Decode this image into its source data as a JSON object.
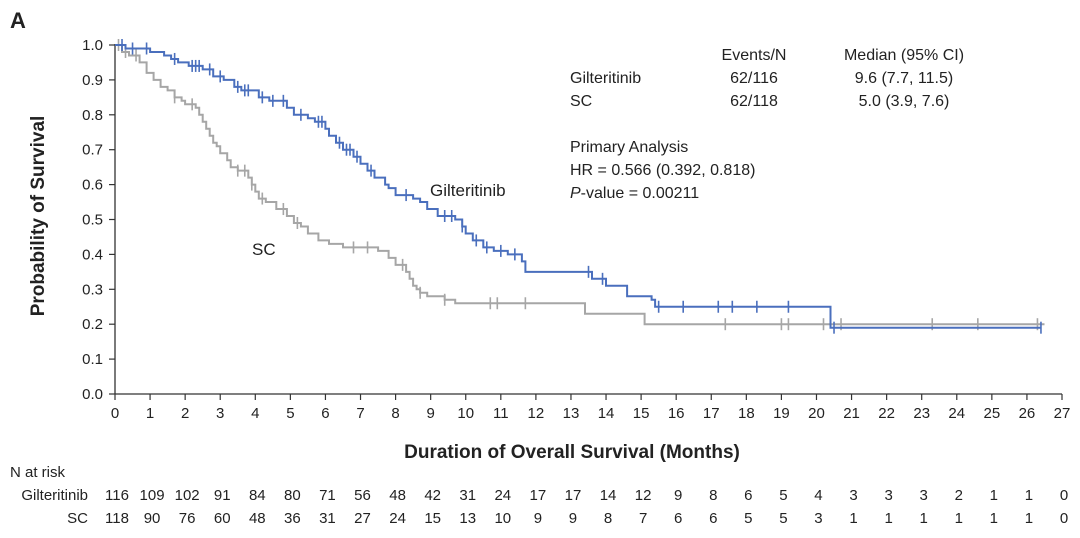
{
  "panel_label": "A",
  "colors": {
    "gilteritinib": "#4a6fbd",
    "sc": "#a6a6a6",
    "axis": "#333333"
  },
  "legend": {
    "header_events": "Events/N",
    "header_median": "Median (95% CI)",
    "rows": [
      {
        "name": "Gilteritinib",
        "events": "62/116",
        "median": "9.6 (7.7, 11.5)"
      },
      {
        "name": "SC",
        "events": "62/118",
        "median": "5.0 (3.9, 7.6)"
      }
    ],
    "analysis_title": "Primary Analysis",
    "hr": "HR = 0.566 (0.392, 0.818)",
    "p_label": "P",
    "p_rest": "-value = 0.00211"
  },
  "risk_table": {
    "title": "N at risk",
    "rows": [
      {
        "name": "Gilteritinib",
        "values": [
          "116",
          "109",
          "102",
          "91",
          "84",
          "80",
          "71",
          "56",
          "48",
          "42",
          "31",
          "24",
          "17",
          "17",
          "14",
          "12",
          "9",
          "8",
          "6",
          "5",
          "4",
          "3",
          "3",
          "3",
          "2",
          "1",
          "1",
          "0"
        ]
      },
      {
        "name": "SC",
        "values": [
          "118",
          "90",
          "76",
          "60",
          "48",
          "36",
          "31",
          "27",
          "24",
          "15",
          "13",
          "10",
          "9",
          "9",
          "8",
          "7",
          "6",
          "6",
          "5",
          "5",
          "3",
          "1",
          "1",
          "1",
          "1",
          "1",
          "1",
          "0"
        ]
      }
    ]
  },
  "chart_data": {
    "type": "line",
    "title": "",
    "xlabel": "Duration of Overall Survival (Months)",
    "ylabel": "Probability of Survival",
    "xlim": [
      0,
      27
    ],
    "ylim": [
      0,
      1.0
    ],
    "xticks": [
      0,
      1,
      2,
      3,
      4,
      5,
      6,
      7,
      8,
      9,
      10,
      11,
      12,
      13,
      14,
      15,
      16,
      17,
      18,
      19,
      20,
      21,
      22,
      23,
      24,
      25,
      26,
      27
    ],
    "yticks": [
      0.0,
      0.1,
      0.2,
      0.3,
      0.4,
      0.5,
      0.6,
      0.7,
      0.8,
      0.9,
      1.0
    ],
    "series": [
      {
        "name": "Gilteritinib",
        "label_text": "Gilteritinib",
        "step_points": [
          [
            0,
            1.0
          ],
          [
            0.3,
            0.99
          ],
          [
            1.0,
            0.98
          ],
          [
            1.4,
            0.97
          ],
          [
            1.6,
            0.96
          ],
          [
            1.8,
            0.95
          ],
          [
            2.1,
            0.94
          ],
          [
            2.5,
            0.93
          ],
          [
            2.8,
            0.91
          ],
          [
            3.1,
            0.9
          ],
          [
            3.4,
            0.88
          ],
          [
            3.6,
            0.87
          ],
          [
            4.1,
            0.85
          ],
          [
            4.4,
            0.84
          ],
          [
            4.9,
            0.82
          ],
          [
            5.1,
            0.8
          ],
          [
            5.5,
            0.79
          ],
          [
            5.7,
            0.78
          ],
          [
            6.0,
            0.76
          ],
          [
            6.1,
            0.74
          ],
          [
            6.3,
            0.72
          ],
          [
            6.5,
            0.7
          ],
          [
            6.8,
            0.68
          ],
          [
            7.0,
            0.66
          ],
          [
            7.2,
            0.64
          ],
          [
            7.4,
            0.62
          ],
          [
            7.7,
            0.6
          ],
          [
            7.8,
            0.59
          ],
          [
            8.0,
            0.57
          ],
          [
            8.5,
            0.56
          ],
          [
            8.7,
            0.55
          ],
          [
            8.9,
            0.53
          ],
          [
            9.2,
            0.51
          ],
          [
            9.7,
            0.5
          ],
          [
            9.9,
            0.48
          ],
          [
            10.0,
            0.46
          ],
          [
            10.2,
            0.44
          ],
          [
            10.5,
            0.42
          ],
          [
            10.8,
            0.41
          ],
          [
            11.2,
            0.4
          ],
          [
            11.6,
            0.38
          ],
          [
            11.7,
            0.35
          ],
          [
            13.6,
            0.33
          ],
          [
            14.0,
            0.31
          ],
          [
            14.6,
            0.28
          ],
          [
            15.3,
            0.27
          ],
          [
            15.4,
            0.25
          ],
          [
            20.4,
            0.19
          ],
          [
            26.4,
            0.19
          ]
        ],
        "censor_times": [
          0.2,
          0.5,
          0.9,
          1.7,
          2.2,
          2.3,
          2.4,
          2.7,
          3.0,
          3.5,
          3.7,
          3.8,
          4.2,
          4.5,
          4.8,
          5.3,
          5.8,
          5.9,
          6.4,
          6.6,
          6.7,
          6.9,
          7.3,
          8.3,
          9.4,
          9.6,
          9.9,
          10.3,
          10.6,
          11.0,
          11.4,
          13.5,
          13.9,
          15.5,
          16.2,
          17.2,
          17.6,
          18.3,
          19.2,
          20.5,
          26.4
        ]
      },
      {
        "name": "SC",
        "label_text": "SC",
        "step_points": [
          [
            0,
            1.0
          ],
          [
            0.2,
            0.98
          ],
          [
            0.4,
            0.97
          ],
          [
            0.7,
            0.95
          ],
          [
            0.9,
            0.92
          ],
          [
            1.1,
            0.9
          ],
          [
            1.3,
            0.88
          ],
          [
            1.5,
            0.87
          ],
          [
            1.7,
            0.85
          ],
          [
            1.9,
            0.84
          ],
          [
            2.0,
            0.83
          ],
          [
            2.3,
            0.82
          ],
          [
            2.4,
            0.8
          ],
          [
            2.5,
            0.78
          ],
          [
            2.6,
            0.76
          ],
          [
            2.7,
            0.74
          ],
          [
            2.8,
            0.72
          ],
          [
            2.9,
            0.71
          ],
          [
            3.0,
            0.69
          ],
          [
            3.2,
            0.67
          ],
          [
            3.3,
            0.65
          ],
          [
            3.5,
            0.64
          ],
          [
            3.8,
            0.62
          ],
          [
            3.9,
            0.6
          ],
          [
            4.0,
            0.58
          ],
          [
            4.1,
            0.56
          ],
          [
            4.3,
            0.55
          ],
          [
            4.6,
            0.53
          ],
          [
            4.9,
            0.51
          ],
          [
            5.1,
            0.49
          ],
          [
            5.3,
            0.48
          ],
          [
            5.5,
            0.46
          ],
          [
            5.8,
            0.44
          ],
          [
            6.1,
            0.43
          ],
          [
            6.5,
            0.42
          ],
          [
            7.5,
            0.41
          ],
          [
            7.8,
            0.39
          ],
          [
            8.0,
            0.37
          ],
          [
            8.3,
            0.35
          ],
          [
            8.4,
            0.33
          ],
          [
            8.5,
            0.31
          ],
          [
            8.6,
            0.3
          ],
          [
            8.7,
            0.29
          ],
          [
            8.9,
            0.28
          ],
          [
            9.4,
            0.27
          ],
          [
            9.7,
            0.26
          ],
          [
            13.4,
            0.23
          ],
          [
            15.1,
            0.2
          ],
          [
            20.4,
            0.2
          ],
          [
            26.5,
            0.2
          ]
        ],
        "censor_times": [
          0.1,
          0.3,
          0.6,
          1.7,
          2.2,
          3.5,
          3.7,
          3.9,
          4.2,
          4.8,
          5.2,
          6.8,
          7.2,
          8.2,
          8.7,
          9.4,
          10.7,
          10.9,
          11.7,
          17.4,
          19.0,
          19.2,
          20.2,
          20.7,
          23.3,
          24.6,
          26.3
        ]
      }
    ]
  }
}
